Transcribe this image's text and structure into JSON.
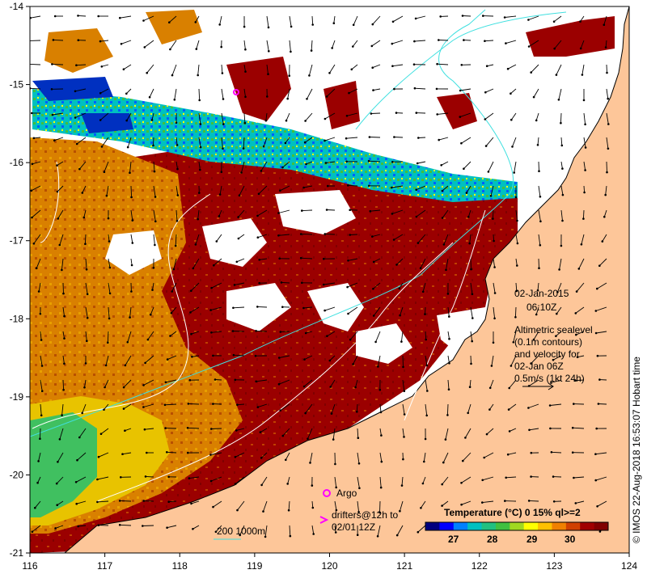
{
  "map": {
    "x_ticks": [
      "116",
      "117",
      "118",
      "119",
      "120",
      "121",
      "122",
      "123",
      "124"
    ],
    "y_ticks": [
      "-14",
      "-15",
      "-16",
      "-17",
      "-18",
      "-19",
      "-20",
      "-21"
    ],
    "date": "02-Jan-2015",
    "time": "06:10Z",
    "info_lines": [
      "Altimetric sealevel",
      "(0.1m contours)",
      "and velocity for",
      "02-Jan 06Z",
      "0.5m/s (1kt 24h)"
    ],
    "argo_label": "Argo",
    "drifters_line1": "drifters@12h to",
    "drifters_line2": "02/01 12Z",
    "bathy_label": "200  1000m",
    "credit": "© IMOS 22-Aug-2018 16:53:07 Hobart time"
  },
  "colorbar": {
    "title": "Temperature (°C) 0 15% ql>=2",
    "tick_labels": [
      "27",
      "28",
      "29",
      "30"
    ],
    "colors": [
      "#00007f",
      "#0000ff",
      "#0080ff",
      "#00c0c0",
      "#20c080",
      "#40c040",
      "#a0d820",
      "#ffff00",
      "#ffc000",
      "#f08000",
      "#d04000",
      "#a00000",
      "#800000"
    ]
  },
  "colors": {
    "land": "#fdc699",
    "ocean_warm": "#9b0000",
    "ocean_mid": "#d97a00",
    "ocean_cool": "#ecc800",
    "ocean_coolest": "#40c060",
    "argo": "#ff00ff",
    "contour_cyan": "#40e0e0",
    "contour_white": "#ffffff"
  }
}
